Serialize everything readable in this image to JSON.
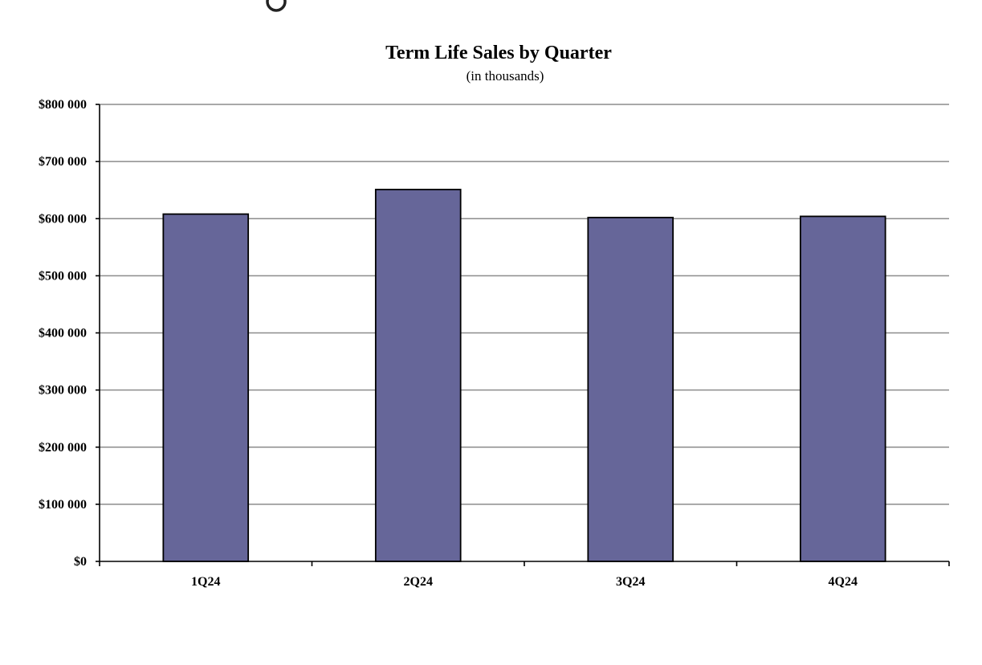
{
  "chart_data": {
    "type": "bar",
    "title": "Term Life Sales by Quarter",
    "subtitle": "(in thousands)",
    "categories": [
      "1Q24",
      "2Q24",
      "3Q24",
      "4Q24"
    ],
    "values": [
      608000,
      651000,
      602000,
      604000
    ],
    "ylim": [
      0,
      800000
    ],
    "y_ticks": [
      0,
      100000,
      200000,
      300000,
      400000,
      500000,
      600000,
      700000,
      800000
    ],
    "y_tick_labels": [
      "$0",
      "$100 000",
      "$200 000",
      "$300 000",
      "$400 000",
      "$500 000",
      "$600 000",
      "$700 000",
      "$800 000"
    ],
    "grid": true,
    "legend": "none",
    "bar_color": "#666699"
  }
}
